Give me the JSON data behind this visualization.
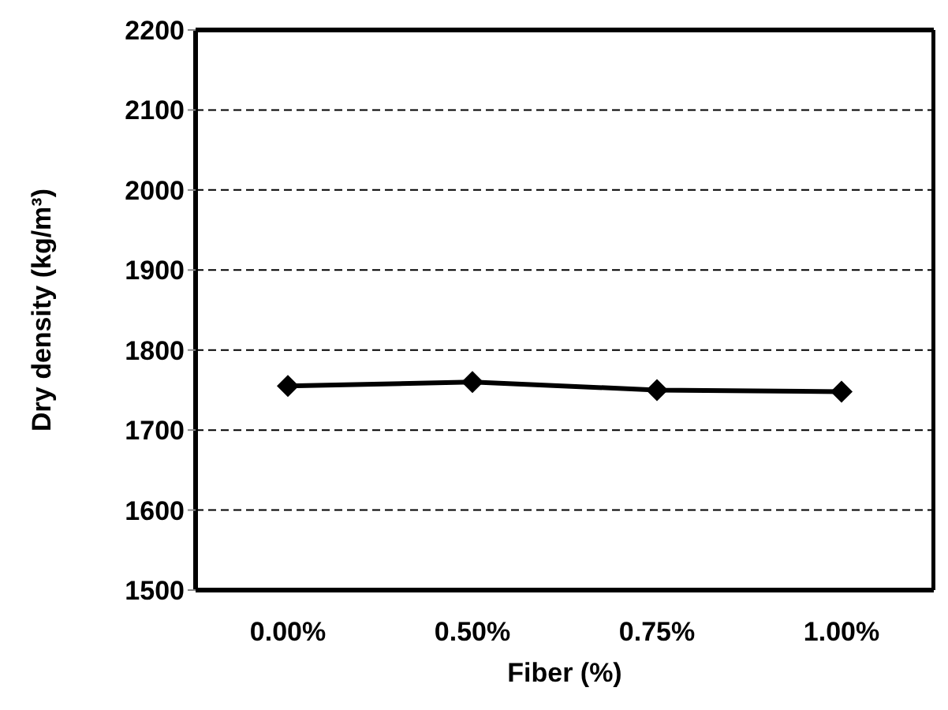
{
  "chart_data": {
    "type": "line",
    "xlabel": "Fiber (%)",
    "ylabel": "Dry density (kg/m³)",
    "categories": [
      "0.00%",
      "0.50%",
      "0.75%",
      "1.00%"
    ],
    "series": [
      {
        "color": "#000000",
        "values": [
          1755,
          1760,
          1750,
          1748
        ]
      }
    ],
    "ylim": [
      1500,
      2200
    ],
    "yticks": [
      1500,
      1600,
      1700,
      1800,
      1900,
      2000,
      2100,
      2200
    ],
    "grid": "y",
    "marker": "diamond",
    "line_style": "solid"
  }
}
